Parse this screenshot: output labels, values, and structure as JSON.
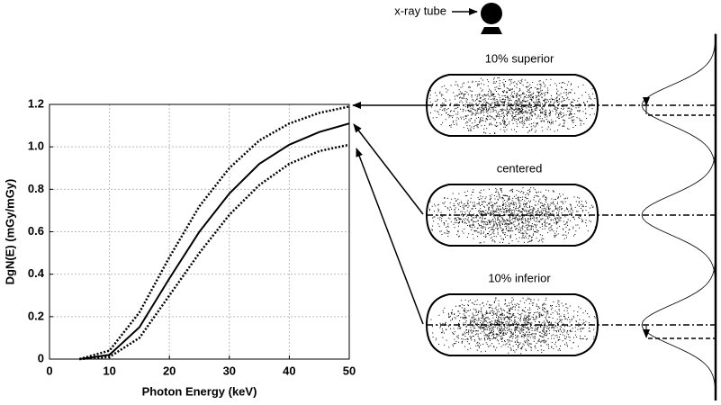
{
  "chart_data": {
    "type": "line",
    "x_label": "Photon Energy (keV)",
    "y_label": "DgN(E)  (mGy/mGy)",
    "x": [
      5,
      10,
      15,
      20,
      25,
      30,
      35,
      40,
      45,
      50
    ],
    "series": [
      {
        "color": "#000000",
        "line_style": "dotted",
        "values": [
          0,
          0.04,
          0.22,
          0.48,
          0.72,
          0.9,
          1.03,
          1.11,
          1.16,
          1.19
        ]
      },
      {
        "color": "#000000",
        "line_style": "solid",
        "values": [
          0,
          0.02,
          0.15,
          0.38,
          0.6,
          0.78,
          0.92,
          1.01,
          1.07,
          1.11
        ]
      },
      {
        "color": "#000000",
        "line_style": "dotted",
        "values": [
          0,
          0.01,
          0.1,
          0.3,
          0.5,
          0.68,
          0.82,
          0.92,
          0.98,
          1.01
        ]
      }
    ],
    "xlim": [
      0,
      50
    ],
    "xticks": [
      0,
      10,
      20,
      30,
      40,
      50
    ],
    "ylim": [
      0,
      1.2
    ],
    "yticks": [
      0,
      0.2,
      0.4,
      0.6,
      0.8,
      {
        "value": 1,
        "label": "1.0"
      },
      {
        "value": 1.2,
        "label": "1.2"
      }
    ],
    "grid": true
  },
  "diagram": {
    "tube_label": "x-ray tube",
    "positions": [
      "10% superior",
      "centered",
      "10% inferior"
    ]
  }
}
